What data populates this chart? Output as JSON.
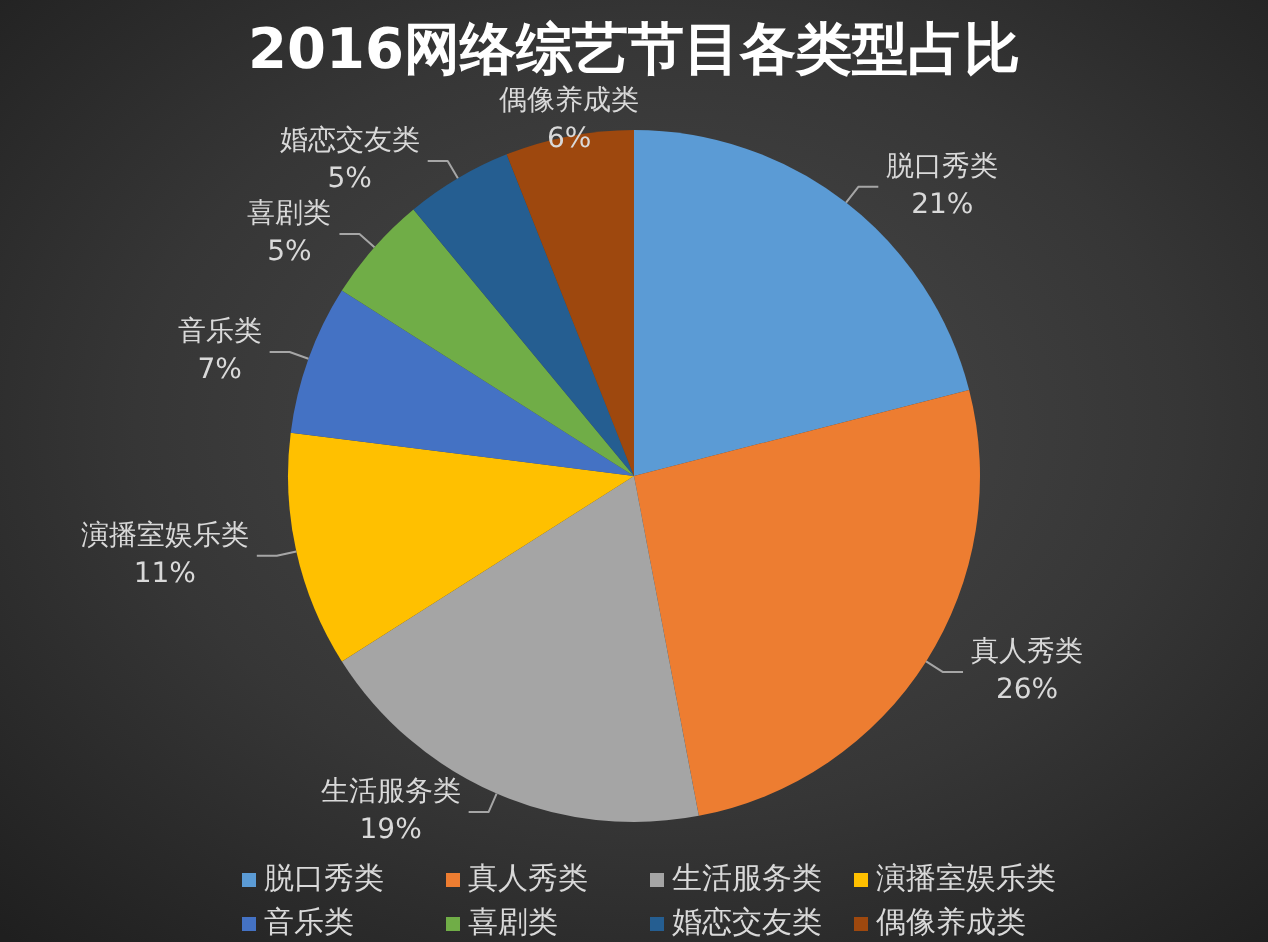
{
  "chart_data": {
    "type": "pie",
    "title": "2016网络综艺节目各类型占比",
    "categories": [
      "脱口秀类",
      "真人秀类",
      "生活服务类",
      "演播室娱乐类",
      "音乐类",
      "喜剧类",
      "婚恋交友类",
      "偶像养成类"
    ],
    "values": [
      21,
      26,
      19,
      11,
      7,
      5,
      5,
      6
    ],
    "colors": [
      "#5b9bd5",
      "#ed7d31",
      "#a5a5a5",
      "#ffc000",
      "#4472c4",
      "#70ad47",
      "#255e91",
      "#9e480e"
    ],
    "value_labels": [
      "21%",
      "26%",
      "19%",
      "11%",
      "7%",
      "5%",
      "5%",
      "6%"
    ],
    "legend": "bottom"
  }
}
